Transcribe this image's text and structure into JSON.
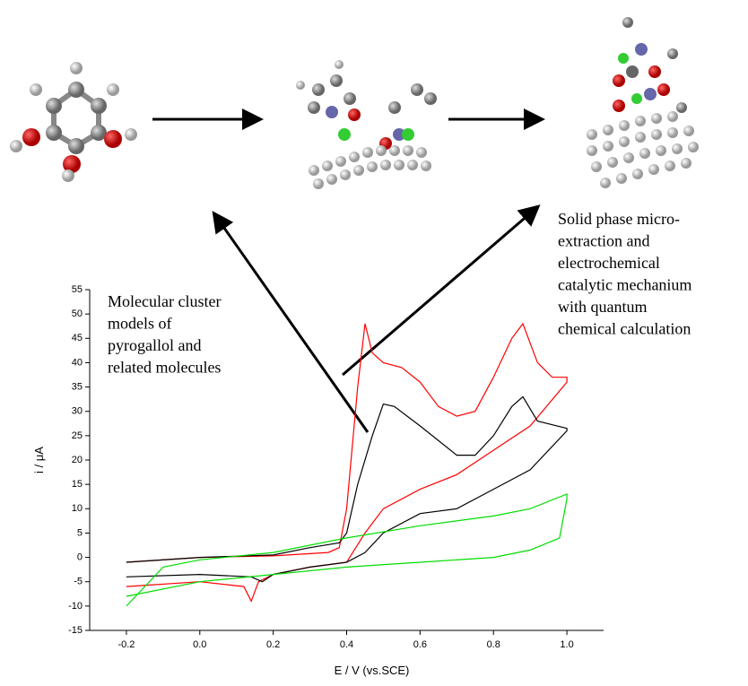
{
  "chart_data": {
    "type": "line",
    "x_label": "E / V (vs.SCE)",
    "y_label": "i / μA",
    "xlim": [
      -0.3,
      1.1
    ],
    "ylim": [
      -15,
      55
    ],
    "xticks": [
      -0.2,
      {
        "value": 0,
        "label": "0.0"
      },
      0.2,
      0.4,
      0.6,
      0.8,
      {
        "value": 1,
        "label": "1.0"
      }
    ],
    "yticks": [
      -15,
      -10,
      -5,
      0,
      5,
      10,
      15,
      20,
      25,
      30,
      35,
      40,
      45,
      50,
      55
    ],
    "series": [
      {
        "color": "#ff0000",
        "x": [
          -0.2,
          0.0,
          0.2,
          0.35,
          0.38,
          0.4,
          0.43,
          0.45,
          0.47,
          0.5,
          0.55,
          0.6,
          0.65,
          0.7,
          0.75,
          0.8,
          0.85,
          0.88,
          0.92,
          0.96,
          1.0,
          1.0,
          0.9,
          0.8,
          0.7,
          0.6,
          0.5,
          0.45,
          0.4,
          0.3,
          0.2,
          0.16,
          0.14,
          0.12,
          0.0,
          -0.2
        ],
        "values": [
          -1,
          0,
          0.3,
          1,
          2,
          10,
          35,
          48,
          42,
          40,
          39,
          36,
          31,
          29,
          30,
          37,
          45,
          48,
          40,
          37,
          37,
          36,
          27,
          22,
          17,
          14,
          10,
          5,
          -1,
          -2,
          -3.5,
          -5,
          -9,
          -6,
          -5,
          -6
        ]
      },
      {
        "color": "#000000",
        "x": [
          -0.2,
          0.0,
          0.2,
          0.3,
          0.38,
          0.4,
          0.43,
          0.47,
          0.5,
          0.53,
          0.6,
          0.7,
          0.75,
          0.8,
          0.85,
          0.88,
          0.92,
          1.0,
          1.0,
          0.9,
          0.8,
          0.7,
          0.6,
          0.5,
          0.45,
          0.4,
          0.3,
          0.2,
          0.17,
          0.14,
          0.0,
          -0.2
        ],
        "values": [
          -1,
          0,
          0.5,
          2,
          3,
          5,
          15,
          25,
          31.5,
          31,
          27,
          21,
          21,
          25,
          31,
          33,
          28,
          26.5,
          26,
          18,
          14,
          10,
          9,
          5,
          1,
          -1,
          -2,
          -3.5,
          -5,
          -4,
          -3.5,
          -4
        ]
      },
      {
        "color": "#00dd00",
        "x": [
          -0.2,
          -0.1,
          0.0,
          0.2,
          0.4,
          0.6,
          0.8,
          0.9,
          1.0,
          1.0,
          0.98,
          0.9,
          0.8,
          0.6,
          0.4,
          0.2,
          0.0,
          -0.2
        ],
        "values": [
          -10,
          -2,
          -0.5,
          1,
          4,
          6.5,
          8.5,
          10,
          13,
          12,
          4,
          1.5,
          0,
          -1,
          -2,
          -3.5,
          -5,
          -8
        ]
      }
    ],
    "annotations": [
      {
        "lines": [
          "Molecular cluster",
          " models of",
          "pyrogallol and",
          "related molecules"
        ]
      },
      {
        "lines": [
          "Solid phase micro-",
          "extraction and",
          "electrochemical",
          "catalytic mechanium",
          "with quantum",
          "chemical calculation"
        ]
      }
    ]
  }
}
